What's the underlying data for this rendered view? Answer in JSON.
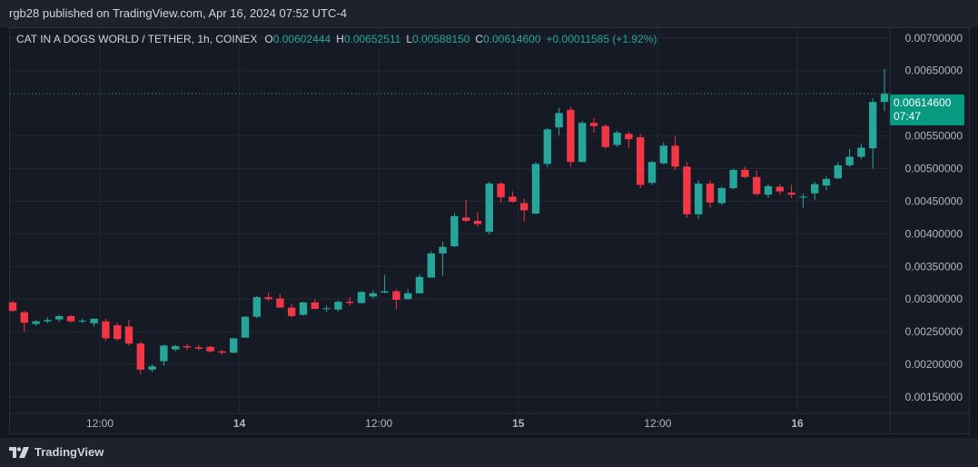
{
  "publisher": "rgb28 published on TradingView.com, Apr 16, 2024 07:52 UTC-4",
  "legend": {
    "symbol": "CAT IN A DOGS WORLD / TETHER, 1h, COINEX",
    "open_label": "O",
    "open": "0.00602444",
    "high_label": "H",
    "high": "0.00652511",
    "low_label": "L",
    "low": "0.00588150",
    "close_label": "C",
    "close": "0.00614600",
    "change": "+0.00011585 (+1.92%)"
  },
  "price_tag": {
    "price": "0.00614600",
    "countdown": "07:47"
  },
  "footer": {
    "brand": "TradingView"
  },
  "colors": {
    "up": "#26a69a",
    "down": "#f23645",
    "background": "#161a25",
    "grid": "#242834",
    "axis_text": "#b2b5be"
  },
  "chart_data": {
    "type": "candlestick",
    "x_ticks": [
      {
        "label": "12:00",
        "index": 7.5
      },
      {
        "label": "14",
        "index": 19.5
      },
      {
        "label": "12:00",
        "index": 31.5
      },
      {
        "label": "15",
        "index": 43.5
      },
      {
        "label": "12:00",
        "index": 55.5
      },
      {
        "label": "16",
        "index": 67.5
      }
    ],
    "y_ticks": [
      "0.00700000",
      "0.00650000",
      "0.00550000",
      "0.00500000",
      "0.00450000",
      "0.00400000",
      "0.00350000",
      "0.00300000",
      "0.00250000",
      "0.00200000",
      "0.00150000"
    ],
    "ylim": [
      0.00125,
      0.00715
    ],
    "current_price": 0.006146,
    "candles": [
      [
        0.00295,
        0.00297,
        0.00281,
        0.00282
      ],
      [
        0.0028,
        0.00282,
        0.0025,
        0.00264
      ],
      [
        0.00262,
        0.00268,
        0.00259,
        0.00266
      ],
      [
        0.00266,
        0.00272,
        0.00263,
        0.00268
      ],
      [
        0.00269,
        0.00276,
        0.00265,
        0.00274
      ],
      [
        0.00274,
        0.00276,
        0.00264,
        0.00266
      ],
      [
        0.00266,
        0.0027,
        0.00263,
        0.00267
      ],
      [
        0.00263,
        0.0027,
        0.00258,
        0.0027
      ],
      [
        0.00266,
        0.0027,
        0.00236,
        0.0024
      ],
      [
        0.0026,
        0.00264,
        0.00236,
        0.00239
      ],
      [
        0.00258,
        0.00268,
        0.00229,
        0.00232
      ],
      [
        0.00232,
        0.00235,
        0.00185,
        0.00192
      ],
      [
        0.00192,
        0.002,
        0.00188,
        0.00197
      ],
      [
        0.00205,
        0.0023,
        0.00198,
        0.00229
      ],
      [
        0.00223,
        0.0023,
        0.0022,
        0.00228
      ],
      [
        0.00228,
        0.00232,
        0.00222,
        0.00226
      ],
      [
        0.00226,
        0.0023,
        0.00222,
        0.00224
      ],
      [
        0.00227,
        0.00228,
        0.00218,
        0.0022
      ],
      [
        0.0022,
        0.00222,
        0.00215,
        0.00218
      ],
      [
        0.00218,
        0.0024,
        0.00217,
        0.0024
      ],
      [
        0.00241,
        0.00274,
        0.00241,
        0.00273
      ],
      [
        0.00273,
        0.00305,
        0.00271,
        0.00303
      ],
      [
        0.00303,
        0.0031,
        0.00297,
        0.003
      ],
      [
        0.00301,
        0.00308,
        0.00287,
        0.00287
      ],
      [
        0.00287,
        0.00292,
        0.00272,
        0.00274
      ],
      [
        0.00276,
        0.00296,
        0.00275,
        0.00295
      ],
      [
        0.00295,
        0.003,
        0.00285,
        0.00285
      ],
      [
        0.00286,
        0.0029,
        0.0028,
        0.00286
      ],
      [
        0.00284,
        0.00298,
        0.00281,
        0.00296
      ],
      [
        0.00296,
        0.00303,
        0.0029,
        0.00294
      ],
      [
        0.00294,
        0.00312,
        0.00293,
        0.00311
      ],
      [
        0.00304,
        0.00314,
        0.00301,
        0.00309
      ],
      [
        0.0031,
        0.00337,
        0.00309,
        0.00312
      ],
      [
        0.00312,
        0.00315,
        0.00285,
        0.00299
      ],
      [
        0.003,
        0.00315,
        0.00299,
        0.00309
      ],
      [
        0.00309,
        0.00338,
        0.00309,
        0.00334
      ],
      [
        0.00333,
        0.00373,
        0.00333,
        0.0037
      ],
      [
        0.0037,
        0.00388,
        0.00336,
        0.0038
      ],
      [
        0.00381,
        0.00432,
        0.0038,
        0.00427
      ],
      [
        0.00425,
        0.00452,
        0.00418,
        0.0042
      ],
      [
        0.0042,
        0.00433,
        0.00411,
        0.00415
      ],
      [
        0.00403,
        0.0048,
        0.00399,
        0.00477
      ],
      [
        0.00477,
        0.00479,
        0.00448,
        0.00456
      ],
      [
        0.00457,
        0.00465,
        0.00448,
        0.00449
      ],
      [
        0.00447,
        0.00454,
        0.00419,
        0.00436
      ],
      [
        0.00431,
        0.0051,
        0.0043,
        0.00507
      ],
      [
        0.00507,
        0.00562,
        0.00502,
        0.0056
      ],
      [
        0.00563,
        0.00593,
        0.00551,
        0.00585
      ],
      [
        0.0059,
        0.00595,
        0.00503,
        0.0051
      ],
      [
        0.0051,
        0.00573,
        0.0051,
        0.0057
      ],
      [
        0.0057,
        0.00577,
        0.00555,
        0.00565
      ],
      [
        0.00565,
        0.00568,
        0.0053,
        0.00533
      ],
      [
        0.00536,
        0.00558,
        0.00533,
        0.00555
      ],
      [
        0.00553,
        0.00556,
        0.00532,
        0.00545
      ],
      [
        0.00548,
        0.00553,
        0.0047,
        0.00475
      ],
      [
        0.00478,
        0.00512,
        0.00475,
        0.0051
      ],
      [
        0.00508,
        0.0054,
        0.00506,
        0.00535
      ],
      [
        0.00535,
        0.00549,
        0.00498,
        0.00503
      ],
      [
        0.00503,
        0.0051,
        0.00424,
        0.0043
      ],
      [
        0.0043,
        0.00482,
        0.00422,
        0.00477
      ],
      [
        0.00477,
        0.00482,
        0.0044,
        0.00448
      ],
      [
        0.00447,
        0.00472,
        0.00444,
        0.0047
      ],
      [
        0.0047,
        0.005,
        0.00468,
        0.00498
      ],
      [
        0.00498,
        0.00503,
        0.00485,
        0.00487
      ],
      [
        0.00487,
        0.00497,
        0.00459,
        0.00461
      ],
      [
        0.0046,
        0.00476,
        0.00455,
        0.00473
      ],
      [
        0.00472,
        0.00476,
        0.0046,
        0.00465
      ],
      [
        0.00463,
        0.00475,
        0.00455,
        0.0046
      ],
      [
        0.00457,
        0.00462,
        0.0044,
        0.00457
      ],
      [
        0.00462,
        0.0048,
        0.00452,
        0.00476
      ],
      [
        0.00474,
        0.00488,
        0.00467,
        0.00484
      ],
      [
        0.00485,
        0.0051,
        0.00484,
        0.00505
      ],
      [
        0.00505,
        0.0053,
        0.00502,
        0.00518
      ],
      [
        0.00518,
        0.00538,
        0.00514,
        0.00532
      ],
      [
        0.00531,
        0.00608,
        0.005,
        0.00602
      ],
      [
        0.00602,
        0.00652511,
        0.0058815,
        0.006146
      ]
    ]
  }
}
